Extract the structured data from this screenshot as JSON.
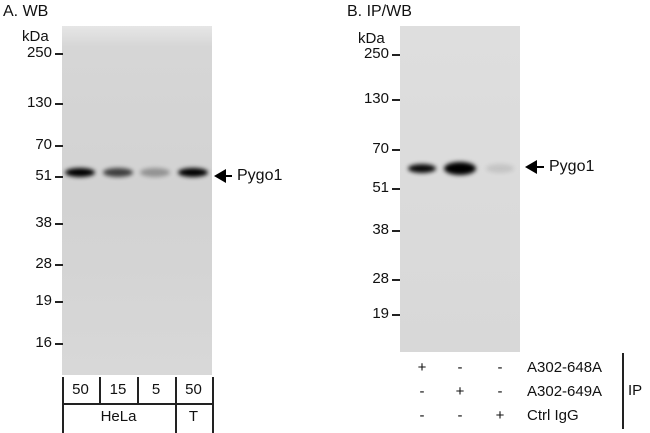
{
  "panel_a": {
    "title": "A. WB",
    "unit": "kDa",
    "markers": [
      "250",
      "130",
      "70",
      "51",
      "38",
      "28",
      "19",
      "16"
    ],
    "target": "Pygo1",
    "lanes": [
      {
        "amount": "50",
        "band_intensity": 1.0
      },
      {
        "amount": "15",
        "band_intensity": 0.7
      },
      {
        "amount": "5",
        "band_intensity": 0.3
      },
      {
        "amount": "50",
        "band_intensity": 1.0
      }
    ],
    "groups": [
      {
        "label": "HeLa",
        "lanes": 3
      },
      {
        "label": "T",
        "lanes": 1
      }
    ]
  },
  "panel_b": {
    "title": "B. IP/WB",
    "unit": "kDa",
    "markers": [
      "250",
      "130",
      "70",
      "51",
      "38",
      "28",
      "19"
    ],
    "target": "Pygo1",
    "lane_band_intensity": [
      0.95,
      1.0,
      0.1
    ],
    "rows": [
      {
        "label": "A302-648A",
        "values": [
          "+",
          "-",
          "-"
        ]
      },
      {
        "label": "A302-649A",
        "values": [
          "-",
          "+",
          "-"
        ]
      },
      {
        "label": "Ctrl IgG",
        "values": [
          "-",
          "-",
          "+"
        ]
      }
    ],
    "bracket_label": "IP"
  }
}
